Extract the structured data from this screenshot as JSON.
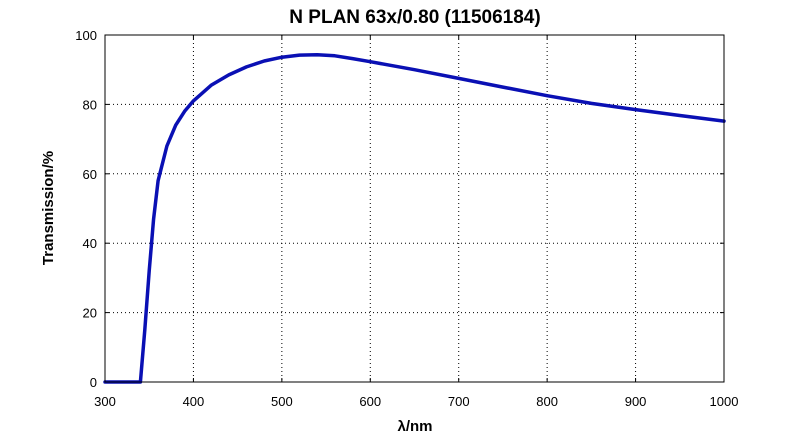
{
  "chart_data": {
    "type": "line",
    "title": "N PLAN 63x/0.80 (11506184)",
    "xlabel": "λ/nm",
    "ylabel": "Transmission/%",
    "xlim": [
      300,
      1000
    ],
    "ylim": [
      0,
      100
    ],
    "xticks": [
      300,
      400,
      500,
      600,
      700,
      800,
      900,
      1000
    ],
    "yticks": [
      0,
      20,
      40,
      60,
      80,
      100
    ],
    "grid": true,
    "series": [
      {
        "color": "#0a10b4",
        "x": [
          300,
          340,
          345,
          350,
          355,
          360,
          370,
          380,
          390,
          400,
          420,
          440,
          460,
          480,
          500,
          520,
          540,
          560,
          580,
          600,
          650,
          700,
          750,
          800,
          850,
          900,
          950,
          1000
        ],
        "y": [
          0,
          0,
          15,
          32,
          47,
          58,
          68,
          74,
          78,
          81,
          85.5,
          88.5,
          90.8,
          92.5,
          93.6,
          94.2,
          94.3,
          94.0,
          93.2,
          92.3,
          90.0,
          87.5,
          85.0,
          82.5,
          80.3,
          78.5,
          76.8,
          75.2
        ]
      }
    ]
  }
}
